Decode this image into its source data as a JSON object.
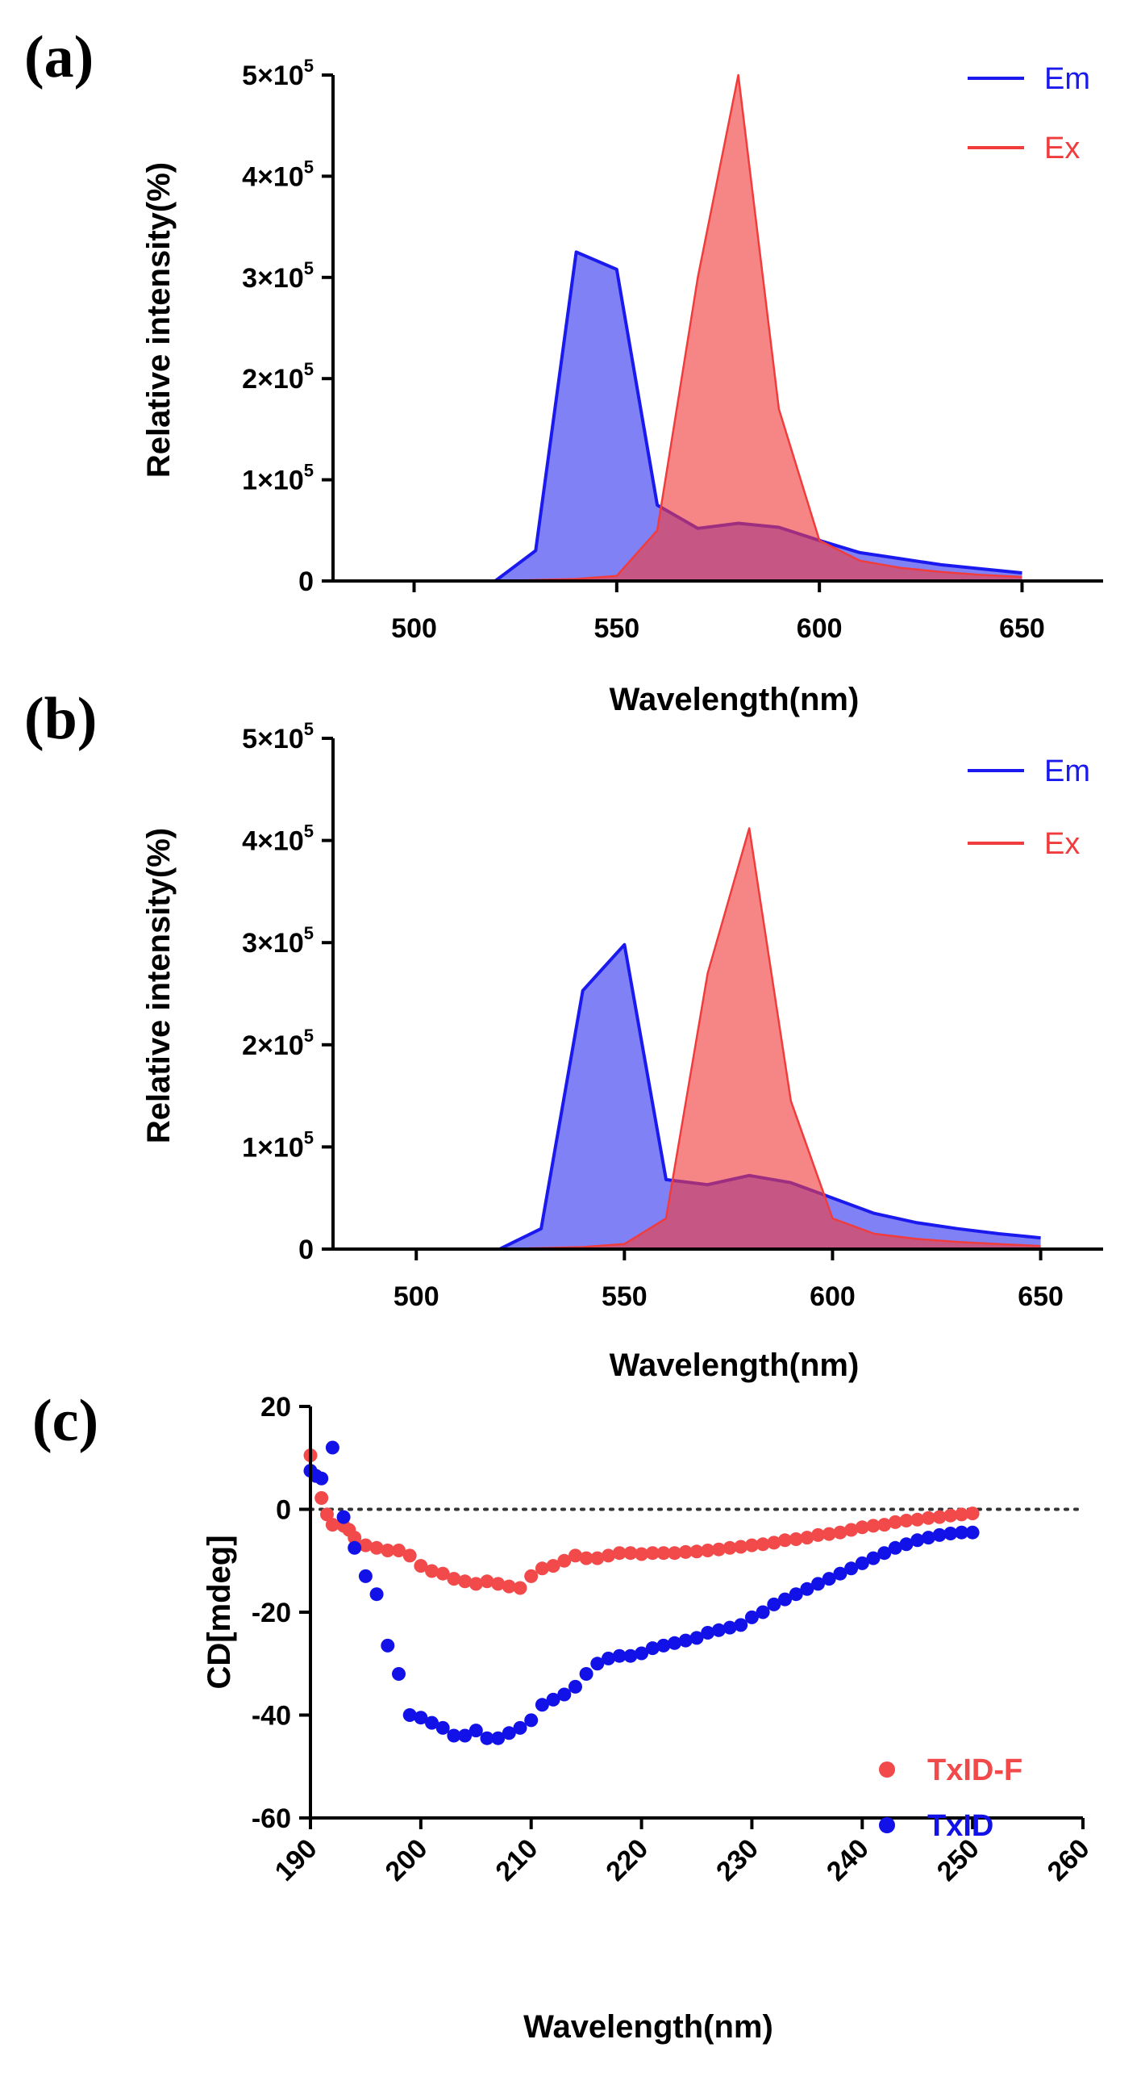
{
  "colors": {
    "em": "#1a1aee",
    "ex": "#f03c3c",
    "txidf": "#f24a4a",
    "txid": "#1212e8",
    "axis": "#000000"
  },
  "chart_data": [
    {
      "id": "a",
      "panel_label": "(a)",
      "type": "area",
      "title": "",
      "xlabel": "Wavelength(nm)",
      "ylabel": "Relative intensity(%)",
      "xlim": [
        480,
        670
      ],
      "ylim": [
        0,
        500000
      ],
      "xticks": [
        500,
        550,
        600,
        650
      ],
      "yticks": [
        {
          "value": 0,
          "mantissa": "0",
          "exp": ""
        },
        {
          "value": 100000,
          "mantissa": "1×10",
          "exp": "5"
        },
        {
          "value": 200000,
          "mantissa": "2×10",
          "exp": "5"
        },
        {
          "value": 300000,
          "mantissa": "3×10",
          "exp": "5"
        },
        {
          "value": 400000,
          "mantissa": "4×10",
          "exp": "5"
        },
        {
          "value": 500000,
          "mantissa": "5×10",
          "exp": "5"
        }
      ],
      "legend_position": "top-right",
      "series": [
        {
          "name": "Em",
          "color_key": "em",
          "x": [
            480,
            520,
            530,
            540,
            550,
            560,
            570,
            580,
            590,
            600,
            610,
            620,
            630,
            640,
            650
          ],
          "y": [
            0,
            0,
            30000,
            325000,
            308000,
            75000,
            52000,
            57000,
            53000,
            40000,
            28000,
            22000,
            16000,
            12000,
            8000
          ]
        },
        {
          "name": "Ex",
          "color_key": "ex",
          "x": [
            480,
            520,
            530,
            540,
            550,
            560,
            570,
            580,
            590,
            600,
            610,
            620,
            630,
            640,
            650
          ],
          "y": [
            0,
            0,
            1000,
            2000,
            5000,
            50000,
            300000,
            500000,
            170000,
            40000,
            20000,
            13000,
            9000,
            6000,
            4000
          ]
        }
      ]
    },
    {
      "id": "b",
      "panel_label": "(b)",
      "type": "area",
      "title": "",
      "xlabel": "Wavelength(nm)",
      "ylabel": "Relative intensity(%)",
      "xlim": [
        480,
        665
      ],
      "ylim": [
        0,
        500000
      ],
      "xticks": [
        500,
        550,
        600,
        650
      ],
      "yticks": [
        {
          "value": 0,
          "mantissa": "0",
          "exp": ""
        },
        {
          "value": 100000,
          "mantissa": "1×10",
          "exp": "5"
        },
        {
          "value": 200000,
          "mantissa": "2×10",
          "exp": "5"
        },
        {
          "value": 300000,
          "mantissa": "3×10",
          "exp": "5"
        },
        {
          "value": 400000,
          "mantissa": "4×10",
          "exp": "5"
        },
        {
          "value": 500000,
          "mantissa": "5×10",
          "exp": "5"
        }
      ],
      "legend_position": "top-right",
      "series": [
        {
          "name": "Em",
          "color_key": "em",
          "x": [
            480,
            520,
            530,
            540,
            550,
            560,
            570,
            580,
            590,
            600,
            610,
            620,
            630,
            640,
            650
          ],
          "y": [
            0,
            0,
            20000,
            253000,
            298000,
            68000,
            63000,
            72000,
            65000,
            50000,
            35000,
            26000,
            20000,
            15000,
            11000
          ]
        },
        {
          "name": "Ex",
          "color_key": "ex",
          "x": [
            480,
            520,
            530,
            540,
            550,
            560,
            570,
            580,
            590,
            600,
            610,
            620,
            630,
            640,
            650
          ],
          "y": [
            0,
            0,
            1000,
            2000,
            5000,
            30000,
            270000,
            412000,
            145000,
            30000,
            15000,
            10000,
            7000,
            5000,
            3000
          ]
        }
      ]
    },
    {
      "id": "c",
      "panel_label": "(c)",
      "type": "scatter",
      "title": "",
      "xlabel": "Wavelength(nm)",
      "ylabel": "CD[mdeg]",
      "xlim": [
        190,
        260
      ],
      "ylim": [
        -60,
        20
      ],
      "xticks": [
        190,
        200,
        210,
        220,
        230,
        240,
        250,
        260
      ],
      "yticks": [
        -60,
        -40,
        -20,
        0,
        20
      ],
      "zero_line": true,
      "legend_position": "right",
      "series": [
        {
          "name": "TxID-F",
          "color_key": "txidf",
          "x": [
            190,
            190.5,
            191,
            191.5,
            192,
            193,
            193.5,
            194,
            195,
            196,
            197,
            198,
            199,
            200,
            201,
            202,
            203,
            204,
            205,
            206,
            207,
            208,
            209,
            210,
            211,
            212,
            213,
            214,
            215,
            216,
            217,
            218,
            219,
            220,
            221,
            222,
            223,
            224,
            225,
            226,
            227,
            228,
            229,
            230,
            231,
            232,
            233,
            234,
            235,
            236,
            237,
            238,
            239,
            240,
            241,
            242,
            243,
            244,
            245,
            246,
            247,
            248,
            249,
            250
          ],
          "y": [
            10.5,
            6.5,
            2.2,
            -1,
            -3,
            -3.2,
            -4,
            -5.5,
            -7,
            -7.5,
            -8,
            -8,
            -9,
            -11,
            -12,
            -12.5,
            -13.5,
            -14,
            -14.5,
            -14,
            -14.5,
            -15,
            -15.3,
            -13,
            -11.5,
            -11,
            -10,
            -9,
            -9.5,
            -9.5,
            -9,
            -8.5,
            -8.5,
            -8.7,
            -8.5,
            -8.5,
            -8.5,
            -8.3,
            -8.2,
            -8,
            -7.8,
            -7.5,
            -7.3,
            -7,
            -6.8,
            -6.5,
            -6,
            -5.8,
            -5.5,
            -5,
            -4.8,
            -4.5,
            -4,
            -3.5,
            -3.2,
            -3,
            -2.5,
            -2.2,
            -2,
            -1.7,
            -1.5,
            -1.2,
            -1,
            -0.8
          ]
        },
        {
          "name": "TxID",
          "color_key": "txid",
          "x": [
            190,
            190.5,
            191,
            192,
            193,
            194,
            195,
            196,
            197,
            198,
            199,
            200,
            201,
            202,
            203,
            204,
            205,
            206,
            207,
            208,
            209,
            210,
            211,
            212,
            213,
            214,
            215,
            216,
            217,
            218,
            219,
            220,
            221,
            222,
            223,
            224,
            225,
            226,
            227,
            228,
            229,
            230,
            231,
            232,
            233,
            234,
            235,
            236,
            237,
            238,
            239,
            240,
            241,
            242,
            243,
            244,
            245,
            246,
            247,
            248,
            249,
            250
          ],
          "y": [
            7.5,
            6.5,
            6,
            12,
            -1.5,
            -7.5,
            -13,
            -16.5,
            -26.5,
            -32,
            -40,
            -40.5,
            -41.5,
            -42.5,
            -44,
            -44,
            -43,
            -44.5,
            -44.5,
            -43.5,
            -42.5,
            -41,
            -38,
            -37,
            -36,
            -34.5,
            -32,
            -30,
            -29,
            -28.5,
            -28.5,
            -28,
            -27,
            -26.5,
            -26,
            -25.5,
            -25,
            -24,
            -23.5,
            -23,
            -22.5,
            -21,
            -20,
            -18.5,
            -17.5,
            -16.5,
            -15.5,
            -14.5,
            -13.5,
            -12.5,
            -11.5,
            -10.5,
            -9.5,
            -8.5,
            -7.5,
            -6.8,
            -6,
            -5.5,
            -5,
            -4.7,
            -4.5,
            -4.5
          ]
        }
      ]
    }
  ]
}
